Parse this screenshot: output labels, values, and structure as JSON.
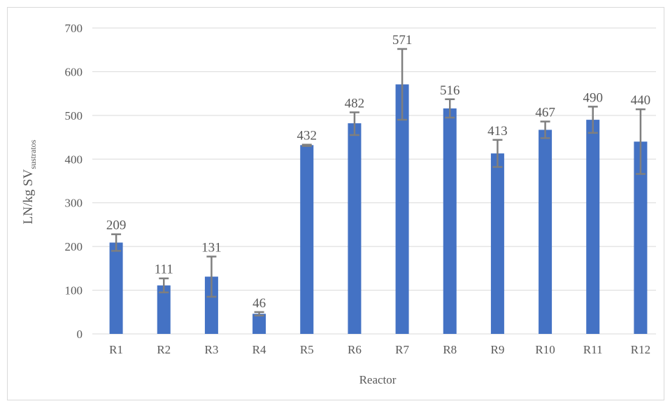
{
  "chart_data": {
    "type": "bar",
    "categories": [
      "R1",
      "R2",
      "R3",
      "R4",
      "R5",
      "R6",
      "R7",
      "R8",
      "R9",
      "R10",
      "R11",
      "R12"
    ],
    "values": [
      209,
      111,
      131,
      46,
      432,
      482,
      571,
      516,
      413,
      467,
      490,
      440
    ],
    "error_low": [
      190,
      95,
      85,
      42,
      430,
      455,
      490,
      495,
      382,
      448,
      460,
      366
    ],
    "error_high": [
      228,
      127,
      177,
      50,
      433,
      507,
      652,
      537,
      444,
      486,
      520,
      514
    ],
    "data_labels": [
      "209",
      "111",
      "131",
      "46",
      "432",
      "482",
      "571",
      "516",
      "413",
      "467",
      "490",
      "440"
    ],
    "xlabel": "Reactor",
    "ylabel_main": "LN/kg SV",
    "ylabel_sub": "sustratos",
    "ylim": [
      0,
      700
    ],
    "yticks": [
      0,
      100,
      200,
      300,
      400,
      500,
      600,
      700
    ],
    "grid": true,
    "bar_color": "#4472c4",
    "error_color": "#7f7f7f",
    "grid_color": "#d9d9d9"
  }
}
